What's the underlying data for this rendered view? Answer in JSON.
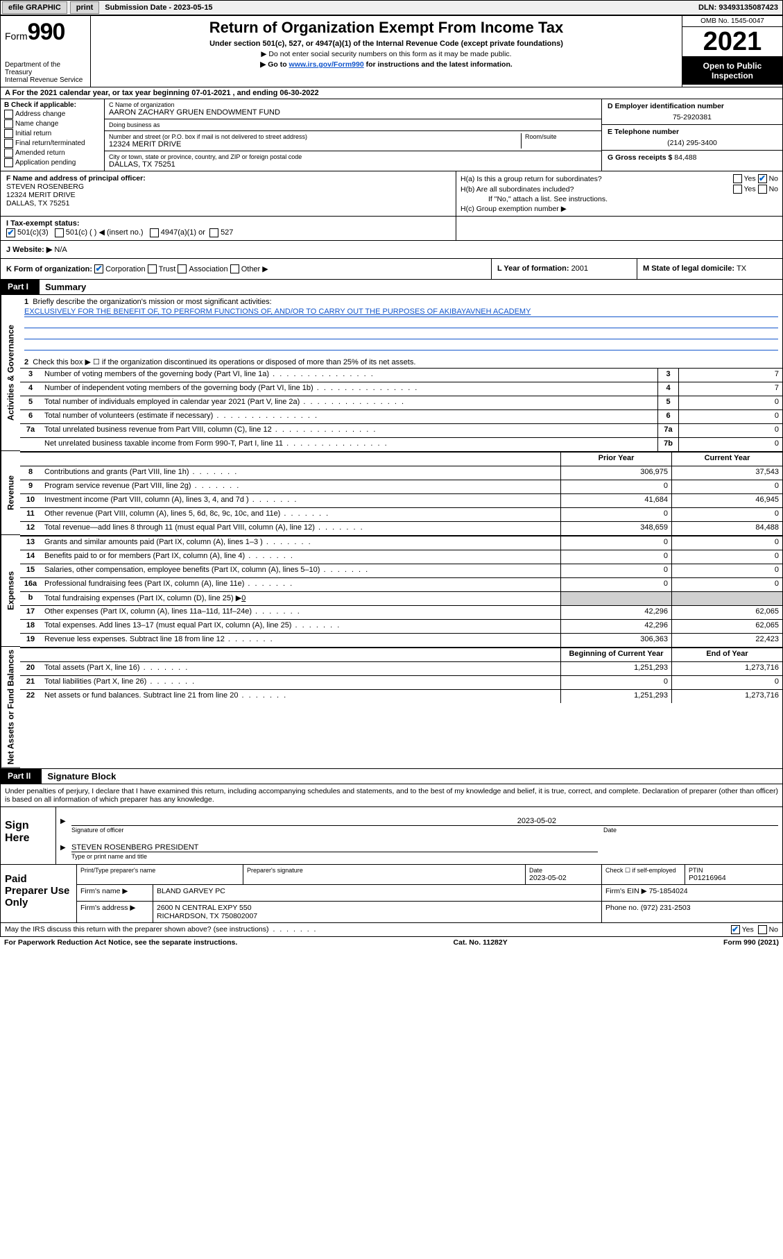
{
  "topbar": {
    "efile": "efile GRAPHIC",
    "print": "print",
    "subdate_label": "Submission Date - ",
    "subdate": "2023-05-15",
    "dln_label": "DLN: ",
    "dln": "93493135087423"
  },
  "header": {
    "form_word": "Form",
    "form_num": "990",
    "dept": "Department of the Treasury",
    "irs": "Internal Revenue Service",
    "title": "Return of Organization Exempt From Income Tax",
    "sub1": "Under section 501(c), 527, or 4947(a)(1) of the Internal Revenue Code (except private foundations)",
    "sub2": "▶ Do not enter social security numbers on this form as it may be made public.",
    "sub3_pre": "▶ Go to ",
    "sub3_link": "www.irs.gov/Form990",
    "sub3_post": " for instructions and the latest information.",
    "omb": "OMB No. 1545-0047",
    "year": "2021",
    "open": "Open to Public Inspection"
  },
  "rowA": {
    "pre": "A For the 2021 calendar year, or tax year beginning ",
    "begin": "07-01-2021",
    "mid": " , and ending ",
    "end": "06-30-2022"
  },
  "colB": {
    "hdr": "B Check if applicable:",
    "opts": [
      "Address change",
      "Name change",
      "Initial return",
      "Final return/terminated",
      "Amended return",
      "Application pending"
    ]
  },
  "colC": {
    "name_lbl": "C Name of organization",
    "name": "AARON ZACHARY GRUEN ENDOWMENT FUND",
    "dba_lbl": "Doing business as",
    "dba": "",
    "addr_lbl": "Number and street (or P.O. box if mail is not delivered to street address)",
    "room_lbl": "Room/suite",
    "addr": "12324 MERIT DRIVE",
    "city_lbl": "City or town, state or province, country, and ZIP or foreign postal code",
    "city": "DALLAS, TX  75251"
  },
  "colD": {
    "ein_lbl": "D Employer identification number",
    "ein": "75-2920381",
    "tel_lbl": "E Telephone number",
    "tel": "(214) 295-3400",
    "gross_lbl": "G Gross receipts $ ",
    "gross": "84,488"
  },
  "colF": {
    "lbl": "F Name and address of principal officer:",
    "name": "STEVEN ROSENBERG",
    "addr1": "12324 MERIT DRIVE",
    "addr2": "DALLAS, TX  75251"
  },
  "colH": {
    "ha": "H(a)  Is this a group return for subordinates?",
    "hb": "H(b)  Are all subordinates included?",
    "hb_note": "If \"No,\" attach a list. See instructions.",
    "hc": "H(c)  Group exemption number ▶",
    "yes": "Yes",
    "no": "No"
  },
  "rowI": {
    "lbl": "I   Tax-exempt status:",
    "c3": "501(c)(3)",
    "c_other": "501(c) (   ) ◀ (insert no.)",
    "a1": "4947(a)(1) or",
    "s527": "527"
  },
  "rowJ": {
    "lbl": "J   Website: ▶",
    "val": "N/A"
  },
  "rowK": {
    "lbl": "K Form of organization:",
    "opts": [
      "Corporation",
      "Trust",
      "Association",
      "Other ▶"
    ]
  },
  "rowL": {
    "lbl": "L Year of formation: ",
    "val": "2001"
  },
  "rowM": {
    "lbl": "M State of legal domicile: ",
    "val": "TX"
  },
  "partI": {
    "num": "Part I",
    "title": "Summary"
  },
  "summary": {
    "q1_lbl": "Briefly describe the organization's mission or most significant activities:",
    "q1_mission": "EXCLUSIVELY FOR THE BENEFIT OF, TO PERFORM FUNCTIONS OF, AND/OR TO CARRY OUT THE PURPOSES OF AKIBAYAVNEH ACADEMY",
    "q2": "Check this box ▶ ☐  if the organization discontinued its operations or disposed of more than 25% of its net assets.",
    "rows_single": [
      {
        "n": "3",
        "t": "Number of voting members of the governing body (Part VI, line 1a)",
        "box": "3",
        "v": "7"
      },
      {
        "n": "4",
        "t": "Number of independent voting members of the governing body (Part VI, line 1b)",
        "box": "4",
        "v": "7"
      },
      {
        "n": "5",
        "t": "Total number of individuals employed in calendar year 2021 (Part V, line 2a)",
        "box": "5",
        "v": "0"
      },
      {
        "n": "6",
        "t": "Total number of volunteers (estimate if necessary)",
        "box": "6",
        "v": "0"
      },
      {
        "n": "7a",
        "t": "Total unrelated business revenue from Part VIII, column (C), line 12",
        "box": "7a",
        "v": "0"
      },
      {
        "n": "",
        "t": "Net unrelated business taxable income from Form 990-T, Part I, line 11",
        "box": "7b",
        "v": "0"
      }
    ],
    "col_prior": "Prior Year",
    "col_current": "Current Year",
    "revenue": [
      {
        "n": "8",
        "t": "Contributions and grants (Part VIII, line 1h)",
        "p": "306,975",
        "c": "37,543"
      },
      {
        "n": "9",
        "t": "Program service revenue (Part VIII, line 2g)",
        "p": "0",
        "c": "0"
      },
      {
        "n": "10",
        "t": "Investment income (Part VIII, column (A), lines 3, 4, and 7d )",
        "p": "41,684",
        "c": "46,945"
      },
      {
        "n": "11",
        "t": "Other revenue (Part VIII, column (A), lines 5, 6d, 8c, 9c, 10c, and 11e)",
        "p": "0",
        "c": "0"
      },
      {
        "n": "12",
        "t": "Total revenue—add lines 8 through 11 (must equal Part VIII, column (A), line 12)",
        "p": "348,659",
        "c": "84,488"
      }
    ],
    "expenses": [
      {
        "n": "13",
        "t": "Grants and similar amounts paid (Part IX, column (A), lines 1–3 )",
        "p": "0",
        "c": "0"
      },
      {
        "n": "14",
        "t": "Benefits paid to or for members (Part IX, column (A), line 4)",
        "p": "0",
        "c": "0"
      },
      {
        "n": "15",
        "t": "Salaries, other compensation, employee benefits (Part IX, column (A), lines 5–10)",
        "p": "0",
        "c": "0"
      },
      {
        "n": "16a",
        "t": "Professional fundraising fees (Part IX, column (A), line 11e)",
        "p": "0",
        "c": "0"
      }
    ],
    "exp_b": {
      "n": "b",
      "t_pre": "Total fundraising expenses (Part IX, column (D), line 25) ▶",
      "t_val": "0"
    },
    "expenses2": [
      {
        "n": "17",
        "t": "Other expenses (Part IX, column (A), lines 11a–11d, 11f–24e)",
        "p": "42,296",
        "c": "62,065"
      },
      {
        "n": "18",
        "t": "Total expenses. Add lines 13–17 (must equal Part IX, column (A), line 25)",
        "p": "42,296",
        "c": "62,065"
      },
      {
        "n": "19",
        "t": "Revenue less expenses. Subtract line 18 from line 12",
        "p": "306,363",
        "c": "22,423"
      }
    ],
    "col_begin": "Beginning of Current Year",
    "col_end": "End of Year",
    "netassets": [
      {
        "n": "20",
        "t": "Total assets (Part X, line 16)",
        "p": "1,251,293",
        "c": "1,273,716"
      },
      {
        "n": "21",
        "t": "Total liabilities (Part X, line 26)",
        "p": "0",
        "c": "0"
      },
      {
        "n": "22",
        "t": "Net assets or fund balances. Subtract line 21 from line 20",
        "p": "1,251,293",
        "c": "1,273,716"
      }
    ],
    "vlabels": {
      "gov": "Activities & Governance",
      "rev": "Revenue",
      "exp": "Expenses",
      "net": "Net Assets or Fund Balances"
    }
  },
  "partII": {
    "num": "Part II",
    "title": "Signature Block"
  },
  "sig": {
    "decl": "Under penalties of perjury, I declare that I have examined this return, including accompanying schedules and statements, and to the best of my knowledge and belief, it is true, correct, and complete. Declaration of preparer (other than officer) is based on all information of which preparer has any knowledge.",
    "sign_here": "Sign Here",
    "sig_officer": "Signature of officer",
    "date_lbl": "Date",
    "date_val": "2023-05-02",
    "name_title": "STEVEN ROSENBERG PRESIDENT",
    "name_title_lbl": "Type or print name and title"
  },
  "paid": {
    "lab": "Paid Preparer Use Only",
    "r1": {
      "c1": "Print/Type preparer's name",
      "c2": "Preparer's signature",
      "c3": "Date",
      "c3v": "2023-05-02",
      "c4": "Check ☐ if self-employed",
      "c5": "PTIN",
      "c5v": "P01216964"
    },
    "r2": {
      "c1": "Firm's name    ▶",
      "c2": "BLAND GARVEY PC",
      "c3": "Firm's EIN ▶",
      "c3v": "75-1854024"
    },
    "r3": {
      "c1": "Firm's address ▶",
      "c2a": "2600 N CENTRAL EXPY 550",
      "c2b": "RICHARDSON, TX  750802007",
      "c3": "Phone no.",
      "c3v": "(972) 231-2503"
    }
  },
  "footer": {
    "may": "May the IRS discuss this return with the preparer shown above? (see instructions)",
    "yes": "Yes",
    "no": "No",
    "pra": "For Paperwork Reduction Act Notice, see the separate instructions.",
    "cat": "Cat. No. 11282Y",
    "form": "Form 990 (2021)"
  }
}
